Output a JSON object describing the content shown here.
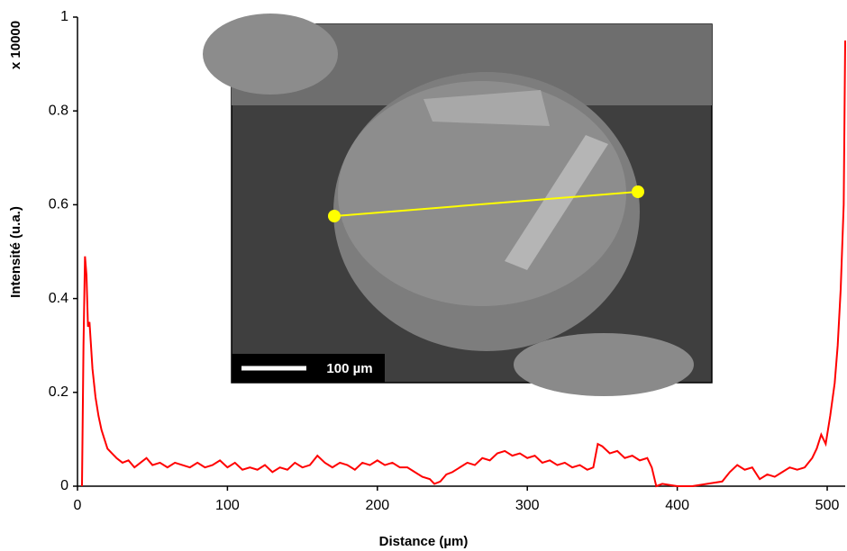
{
  "chart_data": {
    "type": "line",
    "x_label": "Distance (µm)",
    "y_label": "Intensité (u.a.)",
    "y_multiplier": "x 10000",
    "inset_scale_label": "100 µm",
    "color": "#ff0000",
    "xlim": [
      0,
      512
    ],
    "ylim": [
      0,
      1
    ],
    "xticks": [
      0,
      100,
      200,
      300,
      400,
      500
    ],
    "yticks": [
      0,
      0.2,
      0.4,
      0.6,
      0.8,
      1
    ],
    "x": [
      3,
      4,
      5,
      6,
      7,
      8,
      9,
      10,
      12,
      14,
      16,
      18,
      20,
      23,
      26,
      30,
      34,
      38,
      42,
      46,
      50,
      55,
      60,
      65,
      70,
      75,
      80,
      85,
      90,
      95,
      100,
      105,
      110,
      115,
      120,
      125,
      130,
      135,
      140,
      145,
      150,
      155,
      160,
      165,
      170,
      175,
      180,
      185,
      190,
      195,
      200,
      205,
      210,
      215,
      220,
      225,
      230,
      235,
      238,
      242,
      246,
      250,
      255,
      260,
      265,
      270,
      275,
      280,
      285,
      290,
      295,
      300,
      305,
      310,
      315,
      320,
      325,
      330,
      335,
      340,
      344,
      347,
      350,
      355,
      360,
      365,
      370,
      375,
      380,
      383,
      386,
      390,
      400,
      410,
      420,
      430,
      435,
      440,
      445,
      450,
      455,
      460,
      465,
      470,
      475,
      480,
      485,
      490,
      493,
      496,
      499,
      502,
      505,
      507,
      509,
      511,
      512
    ],
    "values": [
      0,
      0.3,
      0.49,
      0.45,
      0.34,
      0.35,
      0.3,
      0.25,
      0.19,
      0.15,
      0.12,
      0.1,
      0.08,
      0.07,
      0.06,
      0.05,
      0.055,
      0.04,
      0.05,
      0.06,
      0.045,
      0.05,
      0.04,
      0.05,
      0.045,
      0.04,
      0.05,
      0.04,
      0.045,
      0.055,
      0.04,
      0.05,
      0.035,
      0.04,
      0.035,
      0.045,
      0.03,
      0.04,
      0.035,
      0.05,
      0.04,
      0.045,
      0.065,
      0.05,
      0.04,
      0.05,
      0.045,
      0.035,
      0.05,
      0.045,
      0.055,
      0.045,
      0.05,
      0.04,
      0.04,
      0.03,
      0.02,
      0.015,
      0.005,
      0.01,
      0.025,
      0.03,
      0.04,
      0.05,
      0.045,
      0.06,
      0.055,
      0.07,
      0.075,
      0.065,
      0.07,
      0.06,
      0.065,
      0.05,
      0.055,
      0.045,
      0.05,
      0.04,
      0.045,
      0.035,
      0.04,
      0.09,
      0.085,
      0.07,
      0.075,
      0.06,
      0.065,
      0.055,
      0.06,
      0.04,
      0,
      0.005,
      0,
      0,
      0.005,
      0.01,
      0.03,
      0.045,
      0.035,
      0.04,
      0.015,
      0.025,
      0.02,
      0.03,
      0.04,
      0.035,
      0.04,
      0.06,
      0.08,
      0.11,
      0.09,
      0.15,
      0.22,
      0.3,
      0.42,
      0.6,
      0.95
    ]
  }
}
